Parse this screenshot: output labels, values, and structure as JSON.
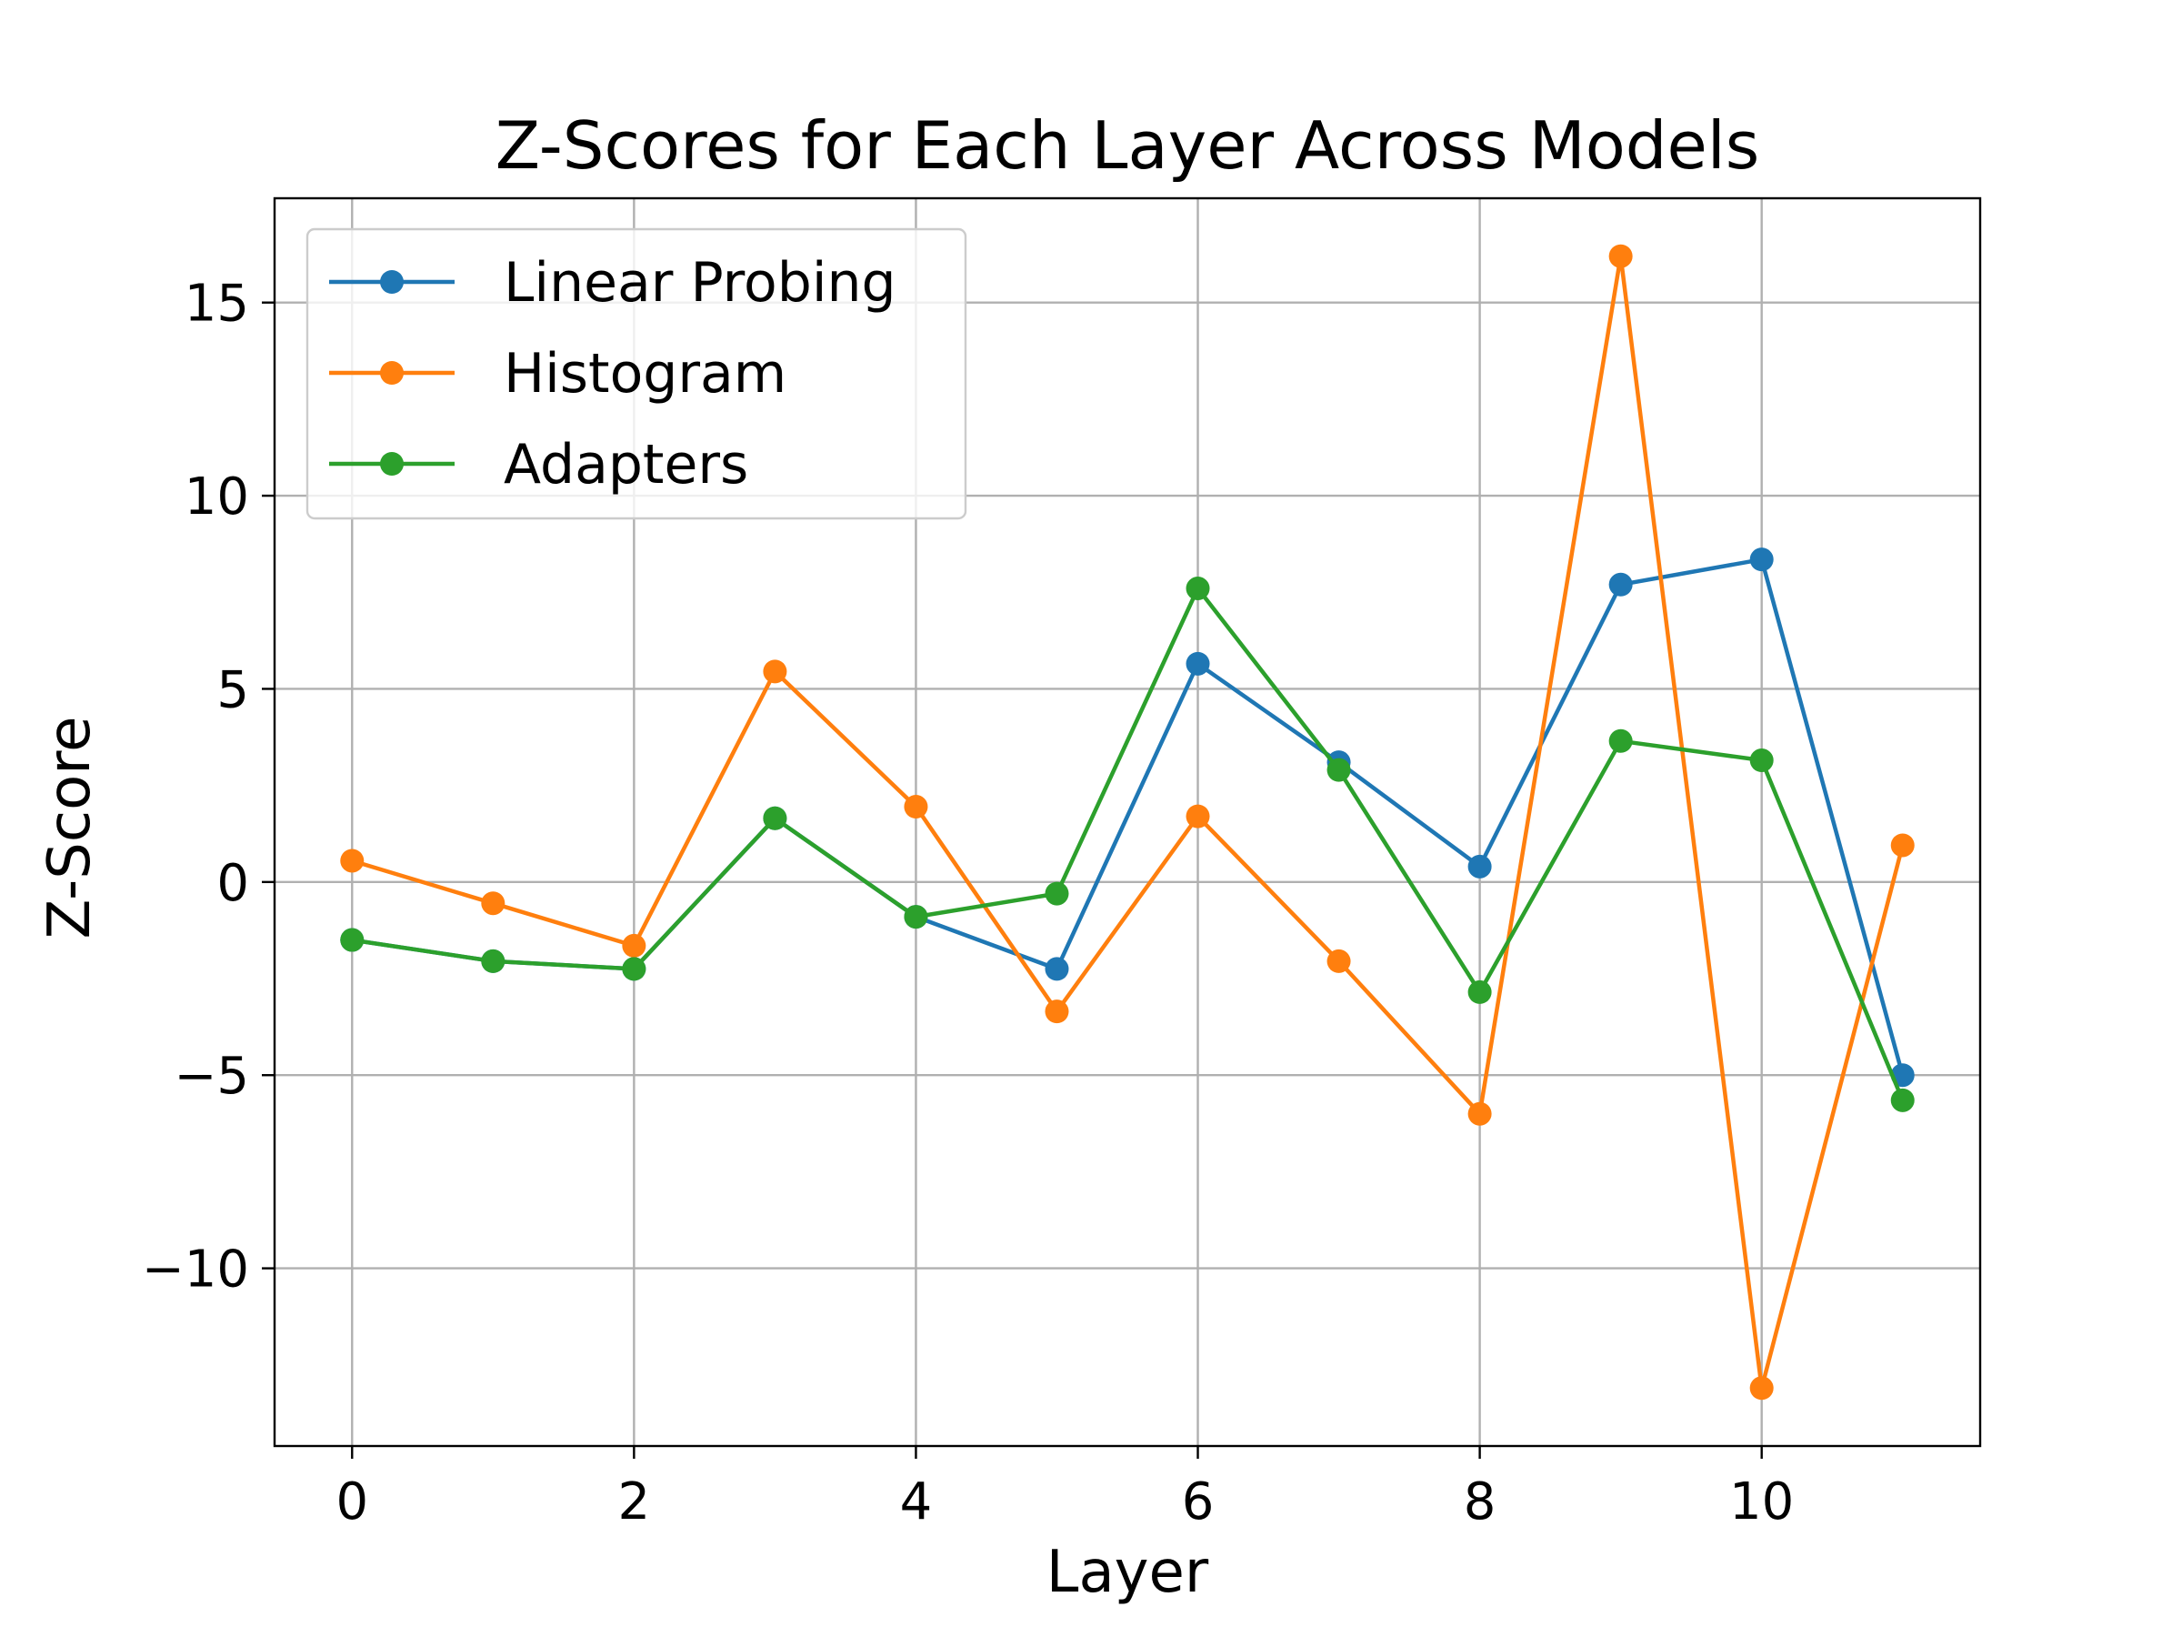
{
  "chart_data": {
    "type": "line",
    "title": "Z-Scores for Each Layer Across Models",
    "xlabel": "Layer",
    "ylabel": "Z-Score",
    "x": [
      0,
      1,
      2,
      3,
      4,
      5,
      6,
      7,
      8,
      9,
      10,
      11
    ],
    "xlim": [
      -0.55,
      11.55
    ],
    "ylim": [
      -14.6,
      17.7
    ],
    "xticks": [
      0,
      2,
      4,
      6,
      8,
      10
    ],
    "xtick_labels": [
      "0",
      "2",
      "4",
      "6",
      "8",
      "10"
    ],
    "yticks": [
      -10,
      -5,
      0,
      5,
      10,
      15
    ],
    "ytick_labels": [
      "−10",
      "−5",
      "0",
      "5",
      "10",
      "15"
    ],
    "grid": true,
    "legend_position": "top-left",
    "series": [
      {
        "name": "Linear Probing",
        "color": "#1f77b4",
        "marker": "circle",
        "values": [
          -1.5,
          -2.05,
          -2.25,
          1.65,
          -0.9,
          -2.25,
          5.65,
          3.1,
          0.4,
          7.7,
          8.35,
          -5.0
        ]
      },
      {
        "name": "Histogram",
        "color": "#ff7f0e",
        "marker": "circle",
        "values": [
          0.55,
          -0.55,
          -1.65,
          5.45,
          1.95,
          -3.35,
          1.7,
          -2.05,
          -6.0,
          16.2,
          -13.1,
          0.95
        ]
      },
      {
        "name": "Adapters",
        "color": "#2ca02c",
        "marker": "circle",
        "values": [
          -1.5,
          -2.05,
          -2.25,
          1.65,
          -0.9,
          -0.3,
          7.6,
          2.9,
          -2.85,
          3.65,
          3.15,
          -5.65
        ]
      }
    ]
  }
}
